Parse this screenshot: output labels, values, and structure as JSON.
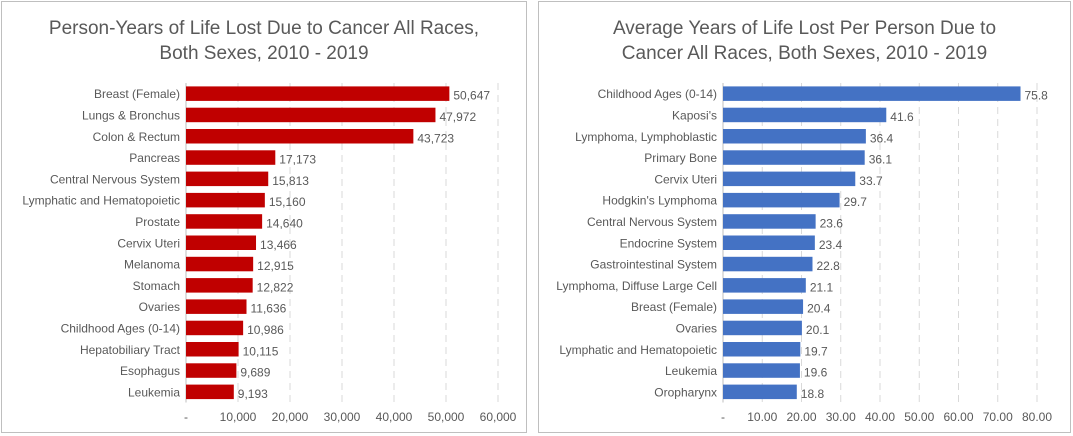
{
  "colors": {
    "left_bar": "#c00000",
    "right_bar": "#4472c4",
    "text": "#595959",
    "grid": "#d9d9d9"
  },
  "chart_data": [
    {
      "type": "bar",
      "orientation": "horizontal",
      "title": [
        "Person-Years of Life Lost Due to Cancer All Races,",
        "Both Sexes, 2010 - 2019"
      ],
      "categories": [
        "Breast (Female)",
        "Lungs & Bronchus",
        "Colon & Rectum",
        "Pancreas",
        "Central Nervous System",
        "Lymphatic and Hematopoietic",
        "Prostate",
        "Cervix Uteri",
        "Melanoma",
        "Stomach",
        "Ovaries",
        "Childhood Ages (0-14)",
        "Hepatobiliary Tract",
        "Esophagus",
        "Leukemia"
      ],
      "values": [
        50647,
        47972,
        43723,
        17173,
        15813,
        15160,
        14640,
        13466,
        12915,
        12822,
        11636,
        10986,
        10115,
        9689,
        9193
      ],
      "value_labels": [
        "50,647",
        "47,972",
        "43,723",
        "17,173",
        "15,813",
        "15,160",
        "14,640",
        "13,466",
        "12,915",
        "12,822",
        "11,636",
        "10,986",
        "10,115",
        "9,689",
        "9,193"
      ],
      "xlim": [
        0,
        60000
      ],
      "xticks": [
        0,
        10000,
        20000,
        30000,
        40000,
        50000,
        60000
      ],
      "xtick_labels": [
        "-",
        "10,000",
        "20,000",
        "30,000",
        "40,000",
        "50,000",
        "60,000"
      ],
      "grid": true,
      "grid_style": "dashed"
    },
    {
      "type": "bar",
      "orientation": "horizontal",
      "title": [
        "Average Years of Life Lost Per Person Due to",
        "Cancer All Races, Both Sexes, 2010 - 2019"
      ],
      "categories": [
        "Childhood Ages (0-14)",
        "Kaposi's",
        "Lymphoma, Lymphoblastic",
        "Primary Bone",
        "Cervix Uteri",
        "Hodgkin's Lymphoma",
        "Central Nervous System",
        "Endocrine System",
        "Gastrointestinal System",
        "Lymphoma, Diffuse Large Cell",
        "Breast (Female)",
        "Ovaries",
        "Lymphatic and Hematopoietic",
        "Leukemia",
        "Oropharynx"
      ],
      "values": [
        75.8,
        41.6,
        36.4,
        36.1,
        33.7,
        29.7,
        23.6,
        23.4,
        22.8,
        21.1,
        20.4,
        20.1,
        19.7,
        19.6,
        18.8
      ],
      "value_labels": [
        "75.8",
        "41.6",
        "36.4",
        "36.1",
        "33.7",
        "29.7",
        "23.6",
        "23.4",
        "22.8",
        "21.1",
        "20.4",
        "20.1",
        "19.7",
        "19.6",
        "18.8"
      ],
      "xlim": [
        0,
        80
      ],
      "xticks": [
        0,
        10,
        20,
        30,
        40,
        50,
        60,
        70,
        80
      ],
      "xtick_labels": [
        "-",
        "10.00",
        "20.00",
        "30.00",
        "40.00",
        "50.00",
        "60.00",
        "70.00",
        "80.00"
      ],
      "grid": true,
      "grid_style": "dashed"
    }
  ]
}
